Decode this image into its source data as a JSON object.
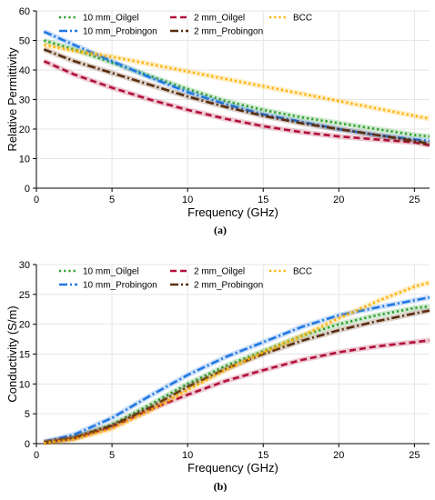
{
  "chart_data": [
    {
      "type": "line",
      "caption": "(a)",
      "xlabel": "Frequency (GHz)",
      "ylabel": "Relative Permittivity",
      "xlim": [
        0,
        26
      ],
      "ylim": [
        0,
        60
      ],
      "xticks": [
        0,
        5,
        10,
        15,
        20,
        25
      ],
      "yticks": [
        0,
        10,
        20,
        30,
        40,
        50,
        60
      ],
      "grid": true,
      "legend_position": "top",
      "x": [
        0.5,
        2.5,
        5,
        7.5,
        10,
        12.5,
        15,
        17.5,
        20,
        22.5,
        25,
        26
      ],
      "series": [
        {
          "name": "10 mm_Oilgel",
          "color": "#2ca02c",
          "style": "dotted",
          "values": [
            50,
            47,
            42.5,
            38,
            33.5,
            29.5,
            26.5,
            24,
            22,
            20,
            18,
            17.5
          ]
        },
        {
          "name": "10 mm_Probingon",
          "color": "#1f77e4",
          "style": "dashdot",
          "values": [
            53,
            48.5,
            43,
            37.5,
            32.5,
            28.5,
            25,
            22.5,
            20,
            18,
            16.5,
            16
          ]
        },
        {
          "name": "2 mm_Oilgel",
          "color": "#b0103a",
          "style": "dashed",
          "values": [
            43,
            38.5,
            34,
            30,
            26.5,
            23.5,
            21,
            19,
            17.5,
            16.5,
            15.5,
            14.5
          ]
        },
        {
          "name": "2 mm_Probingon",
          "color": "#5a2d0c",
          "style": "dashdot",
          "values": [
            47,
            43,
            39,
            35,
            31,
            27.5,
            24.5,
            22,
            20,
            18,
            16,
            15
          ]
        },
        {
          "name": "BCC",
          "color": "#ffb000",
          "style": "dotted",
          "values": [
            48.5,
            46.5,
            44.5,
            42,
            39.5,
            37,
            34.5,
            32,
            29.5,
            27,
            24.5,
            23.5
          ]
        }
      ]
    },
    {
      "type": "line",
      "caption": "(b)",
      "xlabel": "Frequency (GHz)",
      "ylabel": "Conductivity (S/m)",
      "xlim": [
        0,
        26
      ],
      "ylim": [
        0,
        30
      ],
      "xticks": [
        0,
        5,
        10,
        15,
        20,
        25
      ],
      "yticks": [
        0,
        5,
        10,
        15,
        20,
        25,
        30
      ],
      "grid": true,
      "legend_position": "top",
      "x": [
        0.5,
        2.5,
        5,
        7.5,
        10,
        12.5,
        15,
        17.5,
        20,
        22.5,
        25,
        26
      ],
      "series": [
        {
          "name": "10 mm_Oilgel",
          "color": "#2ca02c",
          "style": "dotted",
          "values": [
            0.2,
            1,
            3.2,
            6.5,
            10,
            13,
            15.5,
            18,
            20,
            21.5,
            22.7,
            23
          ]
        },
        {
          "name": "10 mm_Probingon",
          "color": "#1f77e4",
          "style": "dashdot",
          "values": [
            0.3,
            1.5,
            4.3,
            8,
            11.5,
            14.5,
            17,
            19.5,
            21.5,
            22.8,
            24,
            24.5
          ]
        },
        {
          "name": "2 mm_Oilgel",
          "color": "#b0103a",
          "style": "dashed",
          "values": [
            0.2,
            0.9,
            2.8,
            5.7,
            8.2,
            10.5,
            12.3,
            14,
            15.3,
            16.3,
            17,
            17.3
          ]
        },
        {
          "name": "2 mm_Probingon",
          "color": "#5a2d0c",
          "style": "dashdot",
          "values": [
            0.2,
            1,
            3,
            6,
            9.5,
            12.5,
            15,
            17.2,
            19,
            20.5,
            21.8,
            22.3
          ]
        },
        {
          "name": "BCC",
          "color": "#ffb000",
          "style": "dotted",
          "values": [
            0.1,
            0.7,
            2.5,
            5.5,
            9,
            12.3,
            15.3,
            18,
            21,
            23.8,
            26.3,
            27
          ]
        }
      ]
    }
  ]
}
